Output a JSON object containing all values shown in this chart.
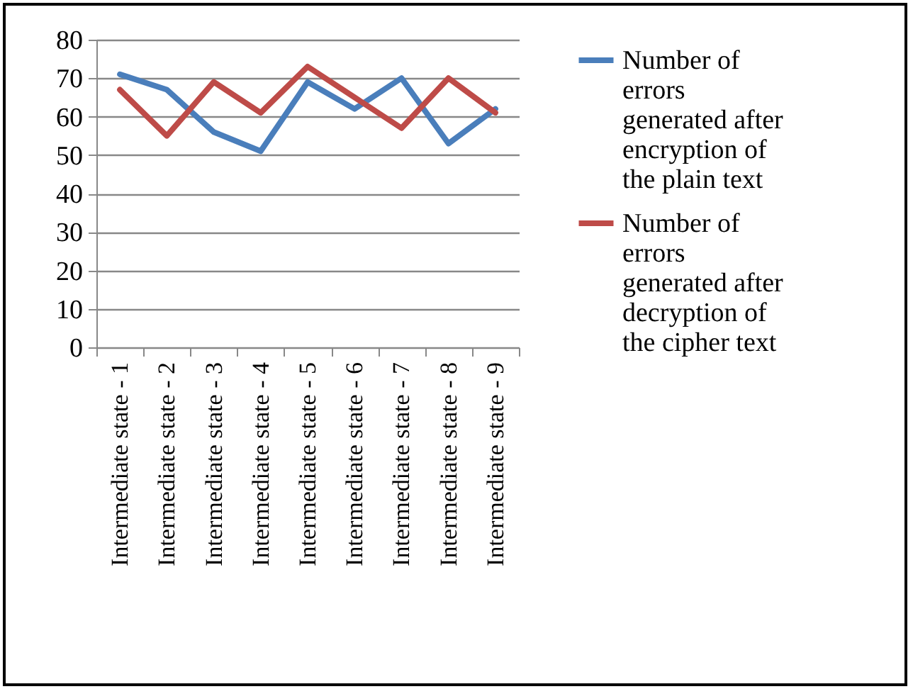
{
  "chart_data": {
    "type": "line",
    "categories": [
      "Intermediate state - 1",
      "Intermediate state - 2",
      "Intermediate state - 3",
      "Intermediate state - 4",
      "Intermediate state - 5",
      "Intermediate state - 6",
      "Intermediate state - 7",
      "Intermediate state - 8",
      "Intermediate state - 9"
    ],
    "series": [
      {
        "name": "Number of errors generated after encryption of the plain text",
        "color": "#4a7ebb",
        "values": [
          71,
          67,
          56,
          51,
          69,
          62,
          70,
          53,
          62
        ]
      },
      {
        "name": "Number of errors generated after decryption of the cipher text",
        "color": "#be4b48",
        "values": [
          67,
          55,
          69,
          61,
          73,
          65,
          57,
          70,
          61
        ]
      }
    ],
    "ylim": [
      0,
      80
    ],
    "yticks": [
      0,
      10,
      20,
      30,
      40,
      50,
      60,
      70,
      80
    ],
    "grid": "y",
    "legend": "right",
    "marker": "none",
    "line_style": "solid"
  }
}
